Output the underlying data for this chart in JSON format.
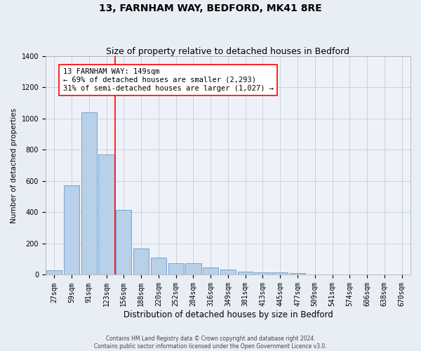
{
  "title": "13, FARNHAM WAY, BEDFORD, MK41 8RE",
  "subtitle": "Size of property relative to detached houses in Bedford",
  "xlabel": "Distribution of detached houses by size in Bedford",
  "ylabel": "Number of detached properties",
  "categories": [
    "27sqm",
    "59sqm",
    "91sqm",
    "123sqm",
    "156sqm",
    "188sqm",
    "220sqm",
    "252sqm",
    "284sqm",
    "316sqm",
    "349sqm",
    "381sqm",
    "413sqm",
    "445sqm",
    "477sqm",
    "509sqm",
    "541sqm",
    "574sqm",
    "606sqm",
    "638sqm",
    "670sqm"
  ],
  "values": [
    30,
    570,
    1040,
    770,
    415,
    170,
    110,
    75,
    75,
    45,
    35,
    20,
    15,
    15,
    10,
    0,
    0,
    0,
    0,
    0,
    0
  ],
  "bar_color": "#b8d0e8",
  "bar_edge_color": "#6699cc",
  "red_line_x": 3.5,
  "annotation_title": "13 FARNHAM WAY: 149sqm",
  "annotation_line1": "← 69% of detached houses are smaller (2,293)",
  "annotation_line2": "31% of semi-detached houses are larger (1,027) →",
  "footer_line1": "Contains HM Land Registry data © Crown copyright and database right 2024.",
  "footer_line2": "Contains public sector information licensed under the Open Government Licence v3.0.",
  "ylim": [
    0,
    1400
  ],
  "yticks": [
    0,
    200,
    400,
    600,
    800,
    1000,
    1200,
    1400
  ],
  "bg_color": "#e8eef4",
  "plot_bg_color": "#eef2f8",
  "grid_color": "#c0cfe0",
  "title_fontsize": 10,
  "subtitle_fontsize": 9,
  "tick_fontsize": 7,
  "ylabel_fontsize": 7.5,
  "xlabel_fontsize": 8.5,
  "annot_fontsize": 7.5,
  "footer_fontsize": 5.5
}
